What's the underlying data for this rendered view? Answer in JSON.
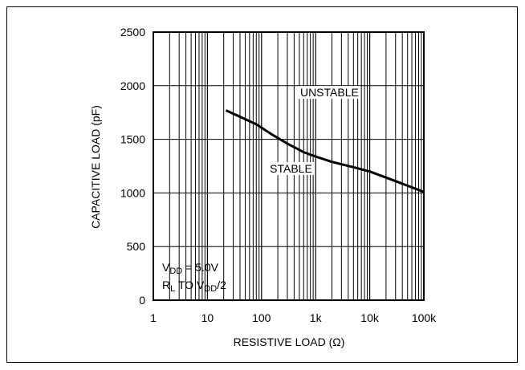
{
  "chart_data": {
    "type": "line",
    "xlabel": "RESISTIVE LOAD (Ω)",
    "ylabel": "CAPACITIVE LOAD (pF)",
    "x_scale": "log",
    "xlim": [
      1,
      100000
    ],
    "ylim": [
      0,
      2500
    ],
    "x_ticks": [
      1,
      10,
      100,
      1000,
      10000,
      100000
    ],
    "x_tick_labels": [
      "1",
      "10",
      "100",
      "1k",
      "10k",
      "100k"
    ],
    "y_ticks": [
      0,
      500,
      1000,
      1500,
      2000,
      2500
    ],
    "y_tick_labels": [
      "0",
      "500",
      "1000",
      "1500",
      "2000",
      "2500"
    ],
    "grid": true,
    "series": [
      {
        "x": [
          22,
          40,
          80,
          150,
          300,
          600,
          1000,
          2000,
          5000,
          10000,
          30000,
          100000
        ],
        "y": [
          1770,
          1710,
          1640,
          1550,
          1460,
          1380,
          1340,
          1290,
          1240,
          1200,
          1110,
          1010
        ]
      }
    ],
    "annotations": [
      {
        "text": "UNSTABLE",
        "x": 1800,
        "y": 1900
      },
      {
        "text": "STABLE",
        "x": 350,
        "y": 1190
      }
    ],
    "conditions": {
      "line1": {
        "base": "V",
        "sub": "DD",
        "rest": " = 5.0V"
      },
      "line2": {
        "base": "R",
        "sub": "L",
        "mid": " TO V",
        "sub2": "DD",
        "rest": "/2"
      }
    }
  }
}
